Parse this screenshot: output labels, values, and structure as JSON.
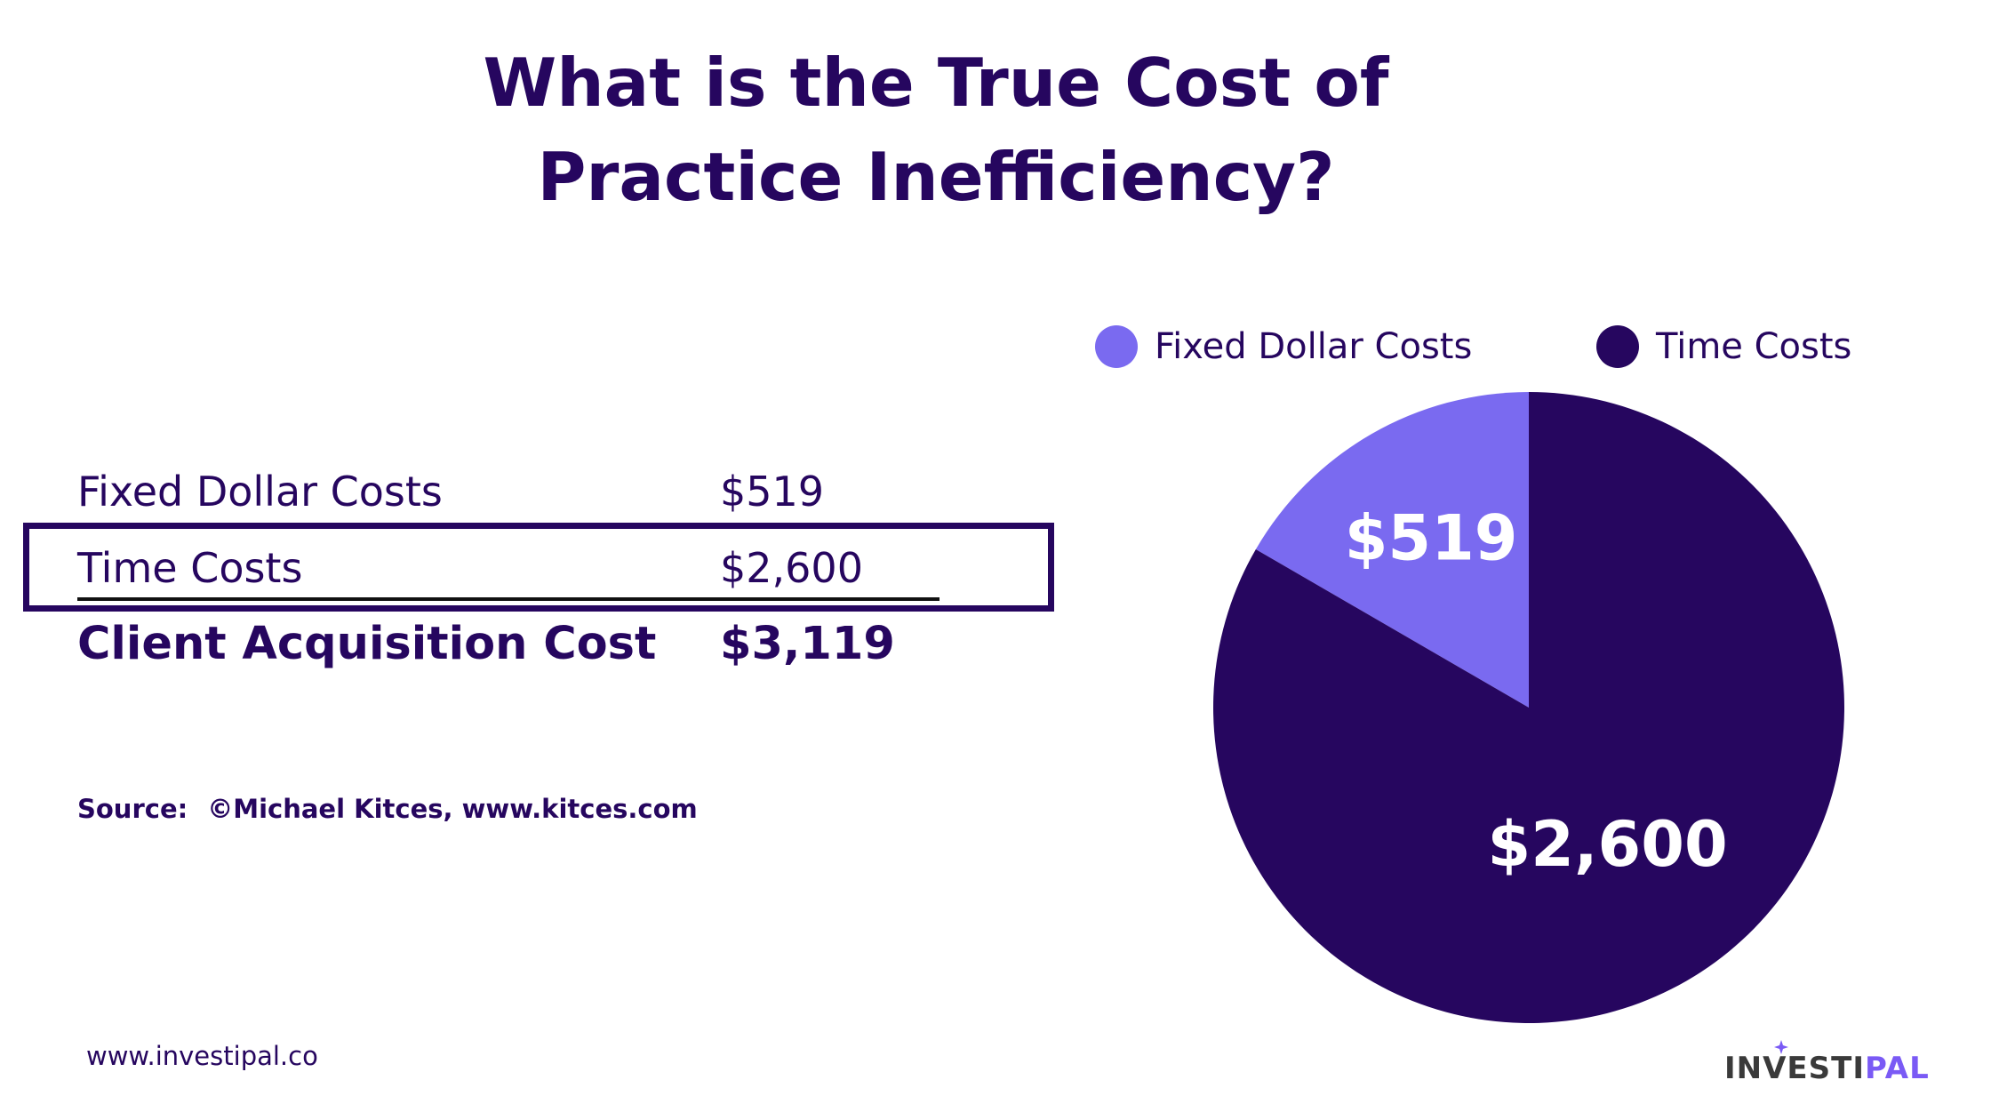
{
  "title": {
    "line1": "What is the True Cost of",
    "line2": "Practice Inefficiency?"
  },
  "table": {
    "rows": [
      {
        "label": "Fixed Dollar Costs",
        "value": "$519"
      },
      {
        "label": "Time Costs",
        "value": "$2,600"
      }
    ],
    "total": {
      "label": "Client Acquisition Cost",
      "value": "$3,119"
    }
  },
  "source": {
    "label": "Source:",
    "text": "©Michael Kitces, www.kitces.com"
  },
  "footer": {
    "url": "www.investipal.co",
    "brand_part1": "INVESTI",
    "brand_part2": "PAL",
    "brand_color_primary": "#3a3a3a",
    "brand_color_accent": "#7a5af5"
  },
  "colors": {
    "dark_purple": "#26065f",
    "light_purple": "#7a6af0"
  },
  "chart_data": {
    "type": "pie",
    "title": "What is the True Cost of Practice Inefficiency?",
    "slices": [
      {
        "label": "Fixed Dollar Costs",
        "value": 519,
        "display": "$519",
        "color": "#7a6af0"
      },
      {
        "label": "Time Costs",
        "value": 2600,
        "display": "$2,600",
        "color": "#26065f"
      }
    ],
    "start_angle": "12 o'clock",
    "direction": "counter-clockwise for the first slice",
    "legend": "top"
  }
}
